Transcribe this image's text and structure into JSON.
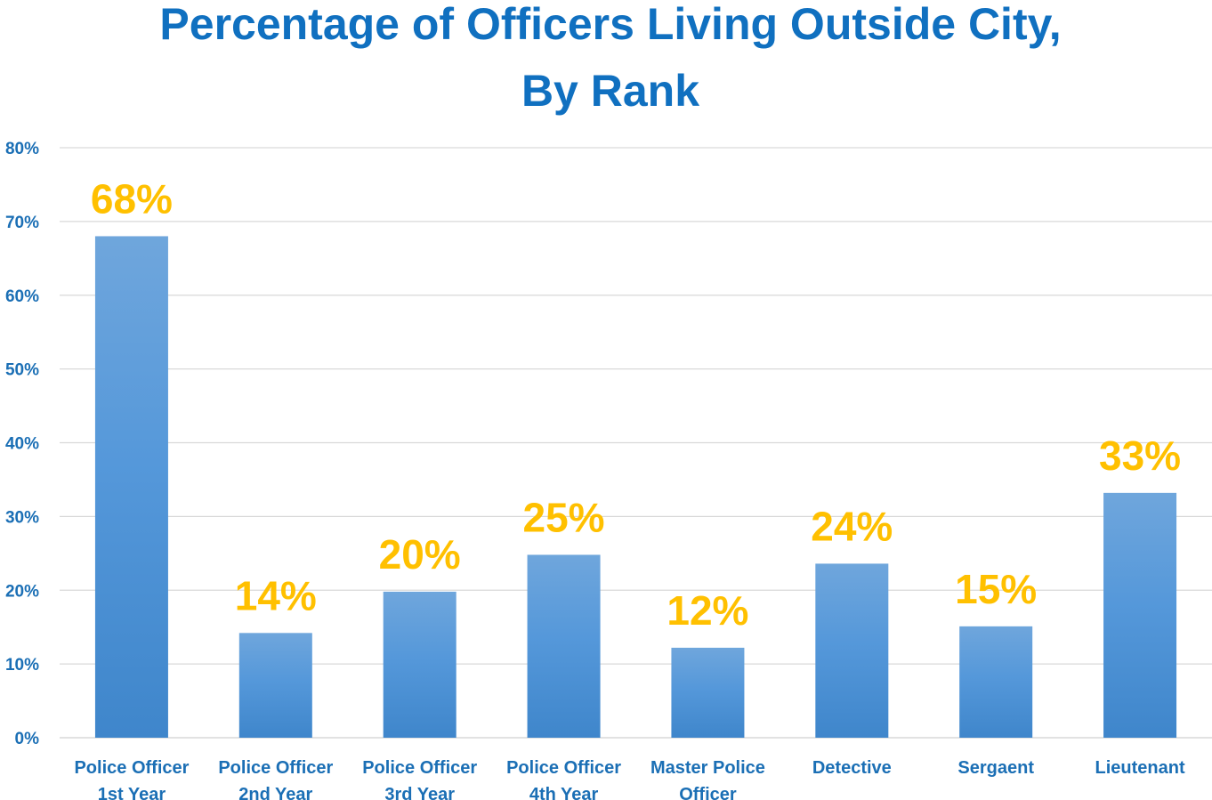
{
  "chart_data": {
    "type": "bar",
    "title_lines": [
      "Percentage of Officers Living Outside City,",
      "By Rank"
    ],
    "categories": [
      [
        "Police Officer",
        "1st Year"
      ],
      [
        "Police Officer",
        "2nd Year"
      ],
      [
        "Police Officer",
        "3rd Year"
      ],
      [
        "Police Officer",
        "4th Year"
      ],
      [
        "Master Police",
        "Officer"
      ],
      [
        "Detective"
      ],
      [
        "Sergaent"
      ],
      [
        "Lieutenant"
      ]
    ],
    "values": [
      68,
      14.2,
      19.8,
      24.8,
      12.2,
      23.6,
      15.1,
      33.2
    ],
    "data_labels": [
      "68%",
      "14%",
      "20%",
      "25%",
      "12%",
      "24%",
      "15%",
      "33%"
    ],
    "yticks": [
      0,
      10,
      20,
      30,
      40,
      50,
      60,
      70,
      80
    ],
    "ytick_labels": [
      "0%",
      "10%",
      "20%",
      "30%",
      "40%",
      "50%",
      "60%",
      "70%",
      "80%"
    ],
    "ylim": [
      0,
      80
    ],
    "xlabel": "",
    "ylabel": "",
    "grid": true,
    "legend": "none",
    "colors": {
      "bar_top": "#6fa6dc",
      "bar_bottom": "#3f86cb",
      "title": "#1070c0",
      "axis_text": "#1b6fb5",
      "data_label": "#ffc000",
      "grid": "#d9d9d9"
    }
  }
}
